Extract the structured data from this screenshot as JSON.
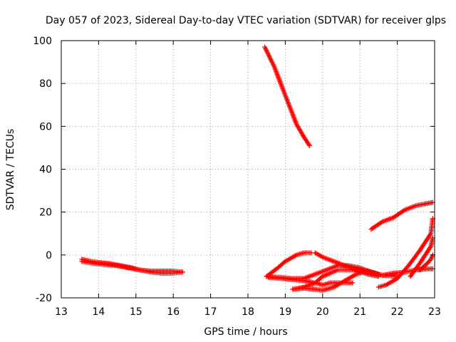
{
  "chart_data": {
    "type": "scatter",
    "title": "Day 057 of 2023, Sidereal Day-to-day VTEC variation (SDTVAR) for receiver glps",
    "xlabel": "GPS time / hours",
    "ylabel": "SDTVAR / TECUs",
    "xlim": [
      13,
      23
    ],
    "ylim": [
      -20,
      100
    ],
    "xticks": [
      "13",
      "14",
      "15",
      "16",
      "17",
      "18",
      "19",
      "20",
      "21",
      "22",
      "23"
    ],
    "yticks": [
      "100",
      "80",
      "60",
      "40",
      "20",
      "0",
      "-20"
    ],
    "grid": true,
    "marker": "+",
    "color": "#ff0000",
    "series": [
      {
        "name": "arc-1",
        "x": [
          13.55,
          13.8,
          14.0,
          14.3,
          14.6,
          14.9,
          15.1,
          15.4,
          15.7,
          16.0,
          16.25
        ],
        "y": [
          -2,
          -3,
          -3.5,
          -4,
          -5,
          -6,
          -7,
          -7.5,
          -7.5,
          -7.5,
          -8
        ]
      },
      {
        "name": "arc-2",
        "x": [
          13.55,
          13.9,
          14.2,
          14.5,
          14.8,
          15.1,
          15.4,
          15.7,
          16.0,
          16.25
        ],
        "y": [
          -3,
          -4,
          -4.5,
          -5,
          -6,
          -7,
          -8,
          -8.5,
          -8.5,
          -8
        ]
      },
      {
        "name": "arc-3",
        "x": [
          18.45,
          18.7,
          18.9,
          19.1,
          19.3,
          19.5,
          19.65
        ],
        "y": [
          97,
          88,
          79,
          70,
          61,
          55,
          51
        ]
      },
      {
        "name": "arc-4",
        "x": [
          18.5,
          18.8,
          19.0,
          19.3,
          19.5,
          19.7
        ],
        "y": [
          -10,
          -6,
          -3,
          0,
          1,
          1
        ]
      },
      {
        "name": "arc-5",
        "x": [
          18.5,
          18.9,
          19.2,
          19.5,
          19.8,
          20.1,
          20.4,
          20.7,
          21.0,
          21.3,
          21.6,
          21.9,
          22.2,
          22.5,
          22.8,
          22.95
        ],
        "y": [
          -10,
          -10.5,
          -11,
          -11,
          -9,
          -7,
          -5,
          -5,
          -6,
          -8,
          -9.5,
          -8.5,
          -8,
          -7,
          -6.5,
          -6.5
        ]
      },
      {
        "name": "arc-6",
        "x": [
          18.55,
          18.9,
          19.2,
          19.5,
          19.8,
          20.0,
          20.2,
          20.5,
          20.8
        ],
        "y": [
          -10.5,
          -11,
          -11.5,
          -12,
          -13,
          -14,
          -13,
          -13,
          -13
        ]
      },
      {
        "name": "arc-7",
        "x": [
          19.2,
          19.5,
          19.8,
          20.0,
          20.3,
          20.6,
          20.9,
          21.2,
          21.5
        ],
        "y": [
          -16,
          -15.5,
          -16,
          -16.5,
          -15,
          -12,
          -9,
          -7.5,
          -9
        ]
      },
      {
        "name": "arc-8",
        "x": [
          19.2,
          19.5,
          19.8,
          20.0,
          20.4,
          20.8,
          21.2,
          21.6,
          22.0
        ],
        "y": [
          -16,
          -15,
          -13,
          -10,
          -7,
          -7,
          -7.5,
          -9.5,
          -10
        ]
      },
      {
        "name": "arc-9",
        "x": [
          19.8,
          20.0,
          20.3,
          20.6,
          20.9,
          21.2,
          21.5
        ],
        "y": [
          1,
          -1,
          -3,
          -5,
          -7,
          -9,
          -10
        ]
      },
      {
        "name": "arc-10",
        "x": [
          21.3,
          21.6,
          21.9,
          22.2,
          22.5,
          22.8,
          22.95
        ],
        "y": [
          12,
          15.5,
          17.5,
          21,
          23,
          24,
          24.5
        ]
      },
      {
        "name": "arc-11",
        "x": [
          21.5,
          21.7,
          22.0,
          22.3,
          22.6,
          22.9,
          22.95
        ],
        "y": [
          -15,
          -14,
          -11,
          -5,
          2,
          10,
          17
        ]
      },
      {
        "name": "arc-12",
        "x": [
          22.35,
          22.6,
          22.9,
          22.95
        ],
        "y": [
          -10,
          -4,
          4,
          8
        ]
      },
      {
        "name": "arc-13",
        "x": [
          22.6,
          22.8,
          22.9,
          22.95
        ],
        "y": [
          -7,
          -4,
          -2,
          0
        ]
      }
    ]
  }
}
